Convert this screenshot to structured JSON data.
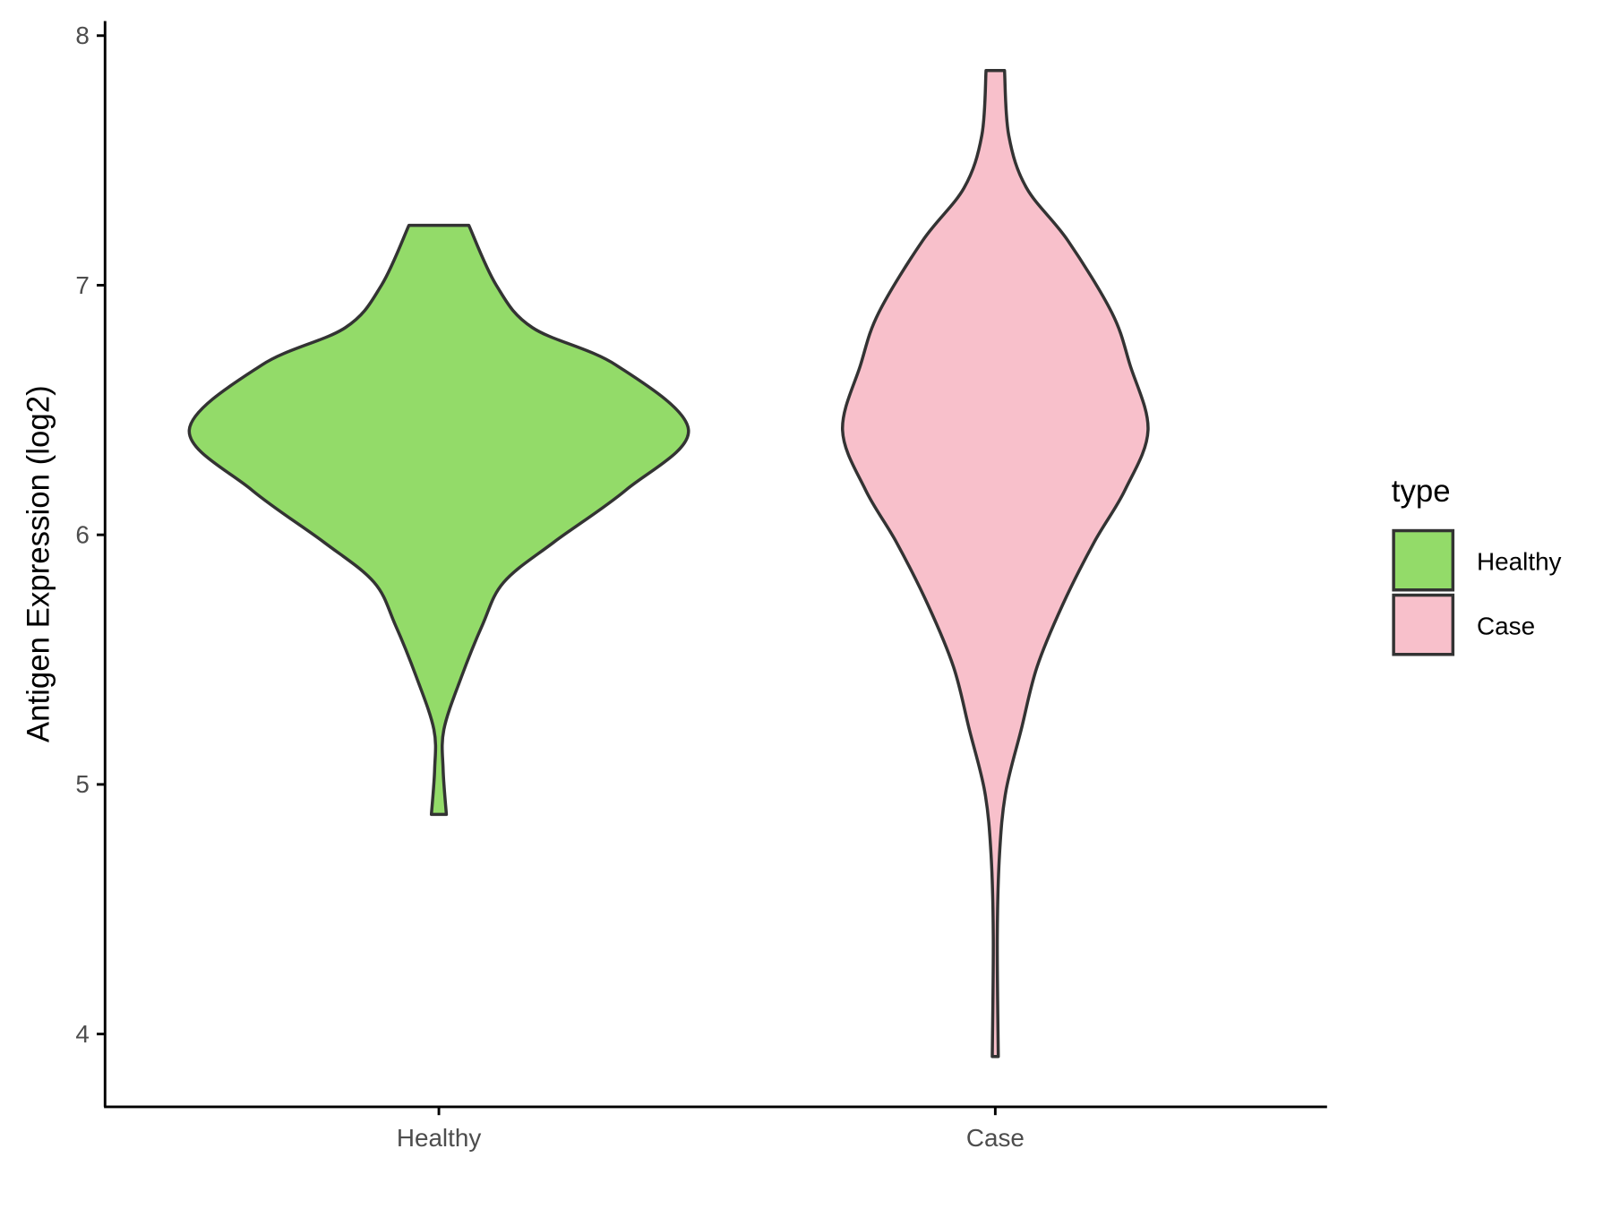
{
  "chart_data": {
    "type": "violin",
    "title": "",
    "xlabel": "",
    "ylabel": "Antigen Expression (log2)",
    "ylim": [
      3.7,
      8.05
    ],
    "yticks": [
      4,
      5,
      6,
      7,
      8
    ],
    "categories": [
      "Healthy",
      "Case"
    ],
    "grid": false,
    "legend": {
      "title": "type",
      "position": "right",
      "entries": [
        "Healthy",
        "Case"
      ]
    },
    "series": [
      {
        "name": "Healthy",
        "color": "#93DB69",
        "min": 4.88,
        "max": 7.24,
        "density_profile": [
          [
            4.88,
            0.03
          ],
          [
            5.06,
            0.017
          ],
          [
            5.22,
            0.02
          ],
          [
            5.43,
            0.09
          ],
          [
            5.64,
            0.175
          ],
          [
            5.81,
            0.26
          ],
          [
            5.97,
            0.46
          ],
          [
            6.18,
            0.75
          ],
          [
            6.42,
            1.0
          ],
          [
            6.68,
            0.71
          ],
          [
            6.83,
            0.375
          ],
          [
            7.0,
            0.23
          ],
          [
            7.24,
            0.12
          ]
        ]
      },
      {
        "name": "Case",
        "color": "#F8C0CB",
        "min": 3.91,
        "max": 7.86,
        "density_profile": [
          [
            3.91,
            0.012
          ],
          [
            4.39,
            0.008
          ],
          [
            4.72,
            0.017
          ],
          [
            4.97,
            0.042
          ],
          [
            5.22,
            0.104
          ],
          [
            5.47,
            0.167
          ],
          [
            5.72,
            0.27
          ],
          [
            5.97,
            0.396
          ],
          [
            6.18,
            0.52
          ],
          [
            6.42,
            0.612
          ],
          [
            6.68,
            0.54
          ],
          [
            6.89,
            0.467
          ],
          [
            7.18,
            0.29
          ],
          [
            7.39,
            0.125
          ],
          [
            7.6,
            0.054
          ],
          [
            7.86,
            0.037
          ]
        ]
      }
    ]
  }
}
